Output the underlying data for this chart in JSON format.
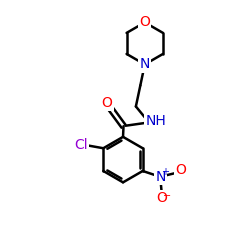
{
  "background_color": "#ffffff",
  "bond_color": "#000000",
  "bond_width": 1.8,
  "atom_colors": {
    "O": "#ff0000",
    "N": "#0000cd",
    "Cl": "#9400d3",
    "C": "#000000"
  },
  "font_size": 10,
  "fig_size": [
    2.5,
    2.5
  ],
  "dpi": 100
}
